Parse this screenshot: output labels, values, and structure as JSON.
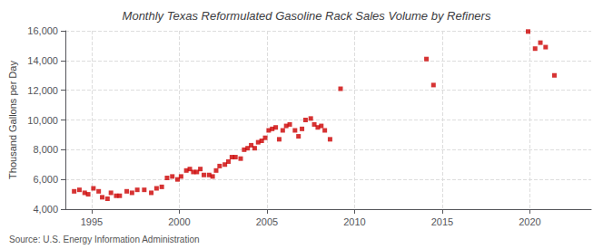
{
  "chart_data": {
    "type": "scatter",
    "title": "Monthly Texas Reformulated Gasoline Rack Sales Volume by Refiners",
    "ylabel": "Thousand Gallons per Day",
    "annotations": [
      "Source: U.S. Energy Information Administration"
    ],
    "color": "#cc0000",
    "marker": "square",
    "grid": true,
    "xlim": [
      1993.5,
      2023.5
    ],
    "xticks": [
      1995,
      2000,
      2005,
      2010,
      2015,
      2020
    ],
    "ylim": [
      4000,
      16000
    ],
    "yticks": [
      {
        "value": 4000,
        "label": "4,000"
      },
      {
        "value": 6000,
        "label": "6,000"
      },
      {
        "value": 8000,
        "label": "8,000"
      },
      {
        "value": 10000,
        "label": "10,000"
      },
      {
        "value": 12000,
        "label": "12,000"
      },
      {
        "value": 14000,
        "label": "14,000"
      },
      {
        "value": 16000,
        "label": "16,000"
      }
    ],
    "x": [
      1994.0,
      1994.3,
      1994.6,
      1994.8,
      1995.1,
      1995.4,
      1995.6,
      1995.9,
      1996.1,
      1996.4,
      1996.6,
      1997.0,
      1997.3,
      1997.6,
      1998.0,
      1998.4,
      1998.7,
      1999.0,
      1999.3,
      1999.6,
      1999.9,
      2000.1,
      2000.4,
      2000.6,
      2000.8,
      2001.0,
      2001.2,
      2001.4,
      2001.7,
      2001.9,
      2002.1,
      2002.3,
      2002.6,
      2002.8,
      2003.0,
      2003.2,
      2003.5,
      2003.7,
      2003.9,
      2004.1,
      2004.3,
      2004.5,
      2004.7,
      2004.9,
      2005.1,
      2005.3,
      2005.5,
      2005.7,
      2005.9,
      2006.1,
      2006.3,
      2006.6,
      2006.8,
      2007.0,
      2007.2,
      2007.5,
      2007.7,
      2007.9,
      2008.1,
      2008.3,
      2008.6,
      2009.2,
      2014.1,
      2014.5,
      2019.9,
      2020.3,
      2020.6,
      2020.9,
      2021.4
    ],
    "values": [
      5200,
      5300,
      5100,
      5000,
      5400,
      5200,
      4800,
      4700,
      5100,
      4900,
      4900,
      5200,
      5100,
      5300,
      5300,
      5100,
      5400,
      5500,
      6100,
      6200,
      6000,
      6200,
      6600,
      6700,
      6500,
      6500,
      6700,
      6300,
      6300,
      6200,
      6600,
      6900,
      7000,
      7200,
      7500,
      7500,
      7400,
      8000,
      8100,
      8300,
      8100,
      8500,
      8600,
      8800,
      9300,
      9400,
      9500,
      8700,
      9300,
      9600,
      9700,
      9300,
      8900,
      9400,
      10000,
      10100,
      9700,
      9500,
      9600,
      9300,
      8700,
      12100,
      14100,
      12350,
      15950,
      14800,
      15200,
      14900,
      13000
    ]
  }
}
